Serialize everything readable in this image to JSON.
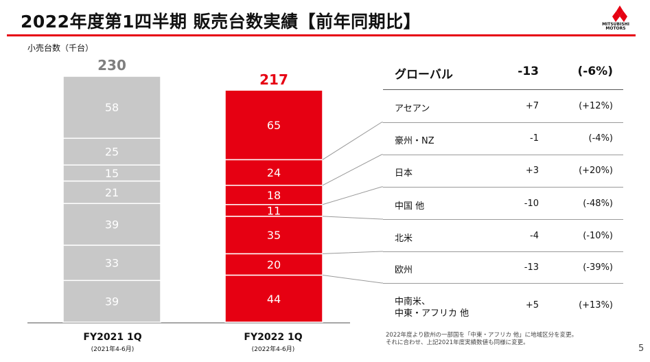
{
  "header": {
    "title": "2022年度第1四半期 販売台数実績【前年同期比】",
    "logo_text_line1": "MITSUBISHI",
    "logo_text_line2": "MOTORS"
  },
  "unit_label": "小売台数（千台）",
  "chart_data": {
    "type": "bar",
    "stacked": true,
    "categories": [
      "FY2021 1Q",
      "FY2022 1Q"
    ],
    "category_subtitles": [
      "(2021年4-6月)",
      "(2022年4-6月)"
    ],
    "totals": [
      230,
      217
    ],
    "segments_top_to_bottom": [
      {
        "values": [
          58,
          65
        ]
      },
      {
        "values": [
          25,
          24
        ]
      },
      {
        "values": [
          15,
          18
        ]
      },
      {
        "values": [
          21,
          11
        ]
      },
      {
        "values": [
          39,
          35
        ]
      },
      {
        "values": [
          33,
          20
        ]
      },
      {
        "values": [
          39,
          44
        ]
      }
    ],
    "colors": {
      "fy2021": "#c8c8c8",
      "fy2022": "#e60012",
      "total_fy2021": "#7f7f7f",
      "total_fy2022": "#e60012"
    }
  },
  "table": {
    "global": {
      "region": "グローバル",
      "change": "-13",
      "pct": "(-6%)"
    },
    "rows": [
      {
        "region": "アセアン",
        "change": "+7",
        "pct": "(+12%)"
      },
      {
        "region": "豪州・NZ",
        "change": "-1",
        "pct": "(-4%)"
      },
      {
        "region": "日本",
        "change": "+3",
        "pct": "(+20%)"
      },
      {
        "region": "中国 他",
        "change": "-10",
        "pct": "(-48%)"
      },
      {
        "region": "北米",
        "change": "-4",
        "pct": "(-10%)"
      },
      {
        "region": "欧州",
        "change": "-13",
        "pct": "(-39%)"
      },
      {
        "region_line1": "中南米、",
        "region_line2": "中東・アフリカ 他",
        "change": "+5",
        "pct": "(+13%)"
      }
    ]
  },
  "footnote": {
    "line1": "2022年度より欧州の一部国を「中東・アフリカ 他」に地域区分を変更。",
    "line2": "それに合わせ、上記2021年度実績数値も同様に変更。"
  },
  "page_number": "5"
}
